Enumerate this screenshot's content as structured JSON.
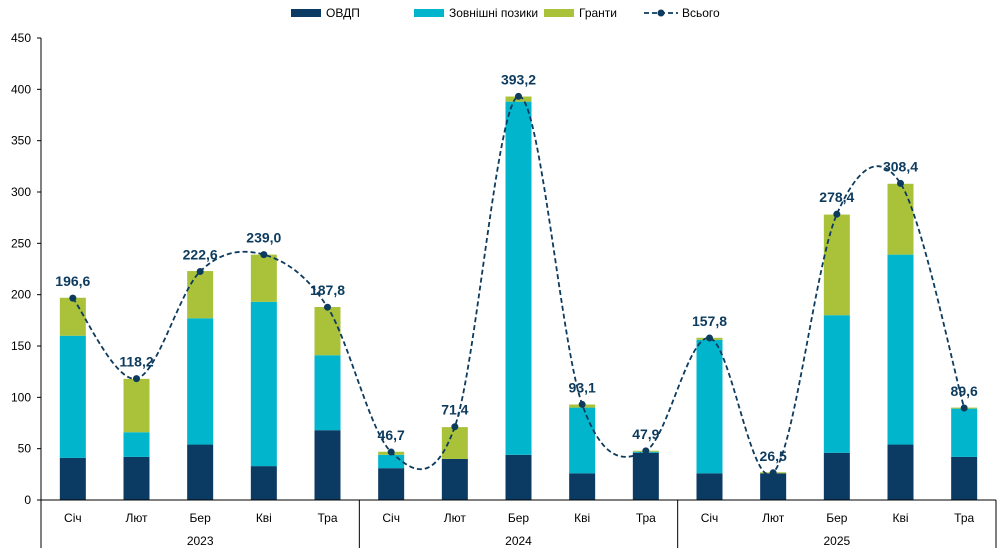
{
  "chart_data": {
    "type": "bar",
    "stacked": true,
    "categories": [
      "Січ",
      "Лют",
      "Бер",
      "Кві",
      "Тра",
      "Січ",
      "Лют",
      "Бер",
      "Кві",
      "Тра",
      "Січ",
      "Лют",
      "Бер",
      "Кві",
      "Тра"
    ],
    "groups": [
      {
        "label": "2023",
        "count": 5
      },
      {
        "label": "2024",
        "count": 5
      },
      {
        "label": "2025",
        "count": 5
      }
    ],
    "series": [
      {
        "name": "ОВДП",
        "color": "#0b3a63",
        "values": [
          41,
          42,
          54,
          33,
          68,
          31,
          40,
          44,
          26,
          46,
          26,
          26,
          46,
          54,
          42
        ]
      },
      {
        "name": "Зовнішні позики",
        "color": "#00b5cc",
        "values": [
          119,
          24,
          123,
          160,
          73,
          13,
          0,
          344,
          64,
          1,
          130,
          0,
          134,
          185,
          47
        ]
      },
      {
        "name": "Гранти",
        "color": "#a9c23a",
        "values": [
          37,
          52,
          46,
          46,
          47,
          3,
          31,
          5,
          3,
          1,
          2,
          1,
          98,
          69,
          1
        ]
      }
    ],
    "line": {
      "name": "Всього",
      "color": "#0d3b5e",
      "values": [
        196.6,
        118.2,
        222.6,
        239.0,
        187.8,
        46.7,
        71.4,
        393.2,
        93.1,
        47.9,
        157.8,
        26.5,
        278.4,
        308.4,
        89.6
      ],
      "labels": [
        "196,6",
        "118,2",
        "222,6",
        "239,0",
        "187,8",
        "46,7",
        "71,4",
        "393,2",
        "93,1",
        "47,9",
        "157,8",
        "26,5",
        "278,4",
        "308,4",
        "89,6"
      ]
    },
    "ylim": [
      0,
      450
    ],
    "yticks": [
      0,
      50,
      100,
      150,
      200,
      250,
      300,
      350,
      400,
      450
    ],
    "grid": false,
    "legend_position": "top-center"
  }
}
